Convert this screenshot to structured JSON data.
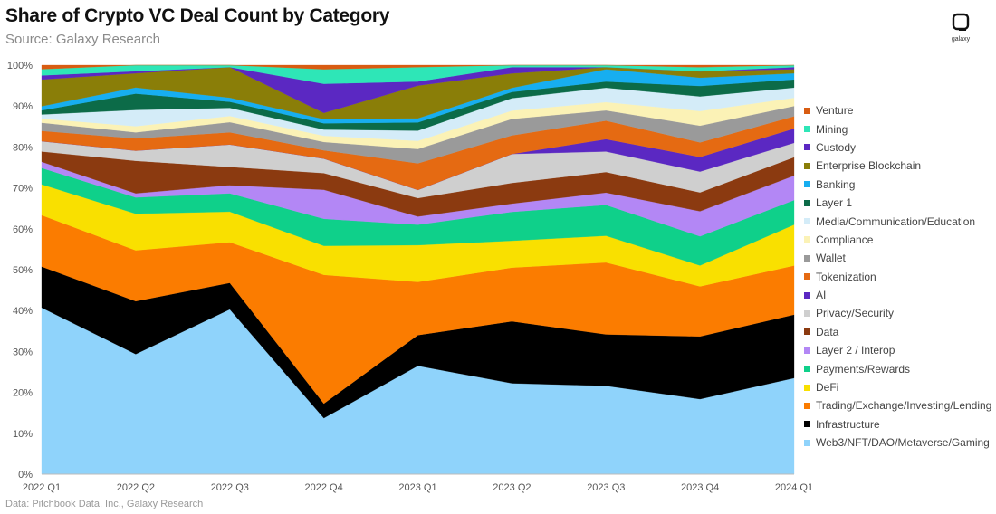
{
  "header": {
    "title": "Share of Crypto VC Deal Count by Category",
    "subtitle": "Source: Galaxy Research"
  },
  "footer": {
    "source": "Data: Pitchbook Data, Inc., Galaxy Research"
  },
  "logo": {
    "text": "galaxy",
    "icon": "galaxy-logo-icon"
  },
  "chart_data": {
    "type": "area",
    "stacked": true,
    "normalized": true,
    "title": "Share of Crypto VC Deal Count by Category",
    "xlabel": "",
    "ylabel": "",
    "ylim": [
      0,
      100
    ],
    "y_ticks": [
      "0%",
      "10%",
      "20%",
      "30%",
      "40%",
      "50%",
      "60%",
      "70%",
      "80%",
      "90%",
      "100%"
    ],
    "categories": [
      "2022 Q1",
      "2022 Q2",
      "2022 Q3",
      "2022 Q4",
      "2023 Q1",
      "2023 Q2",
      "2023 Q3",
      "2023 Q4",
      "2024 Q1"
    ],
    "legend_position": "right",
    "series": [
      {
        "name": "Web3/NFT/DAO/Metaverse/Gaming",
        "color": "#8fd3fb",
        "values": [
          40.5,
          29.5,
          40.5,
          13.5,
          26.5,
          22.0,
          21.5,
          18.0,
          23.5
        ]
      },
      {
        "name": "Infrastructure",
        "color": "#000000",
        "values": [
          10.0,
          13.0,
          6.5,
          3.5,
          7.5,
          15.0,
          12.5,
          15.0,
          15.5
        ]
      },
      {
        "name": "Trading/Exchange/Investing/Lending",
        "color": "#fb7c00",
        "values": [
          12.5,
          12.5,
          10.0,
          31.0,
          13.0,
          13.0,
          17.5,
          12.0,
          12.0
        ]
      },
      {
        "name": "DeFi",
        "color": "#f9e000",
        "values": [
          7.5,
          9.0,
          7.5,
          7.0,
          9.0,
          6.5,
          6.5,
          5.0,
          10.0
        ]
      },
      {
        "name": "Payments/Rewards",
        "color": "#0fd08a",
        "values": [
          4.0,
          4.0,
          4.5,
          6.5,
          5.0,
          7.0,
          7.5,
          7.0,
          6.0
        ]
      },
      {
        "name": "Layer 2 / Interop",
        "color": "#b387f5",
        "values": [
          1.5,
          1.0,
          2.0,
          7.0,
          2.0,
          2.0,
          3.0,
          6.0,
          6.0
        ]
      },
      {
        "name": "Data",
        "color": "#8b3a10",
        "values": [
          2.5,
          8.0,
          4.5,
          4.0,
          4.5,
          5.0,
          5.0,
          4.5,
          4.5
        ]
      },
      {
        "name": "Privacy/Security",
        "color": "#cfcfcf",
        "values": [
          2.5,
          2.5,
          5.5,
          3.5,
          2.0,
          7.0,
          5.0,
          5.0,
          3.5
        ]
      },
      {
        "name": "AI",
        "color": "#5b28c2",
        "values": [
          0,
          0,
          0,
          0,
          0,
          0,
          3.0,
          3.5,
          3.5
        ]
      },
      {
        "name": "Tokenization",
        "color": "#e56a12",
        "values": [
          2.5,
          3.0,
          3.0,
          2.0,
          6.5,
          4.5,
          4.5,
          3.5,
          3.0
        ]
      },
      {
        "name": "Wallet",
        "color": "#9a9a9a",
        "values": [
          2.0,
          1.5,
          2.5,
          2.0,
          3.5,
          4.0,
          2.5,
          4.0,
          2.5
        ]
      },
      {
        "name": "Compliance",
        "color": "#fbf2b6",
        "values": [
          1.0,
          1.5,
          1.5,
          1.5,
          2.0,
          2.0,
          2.0,
          3.5,
          2.0
        ]
      },
      {
        "name": "Media/Communication/Education",
        "color": "#d4ecf8",
        "values": [
          1.0,
          4.0,
          2.0,
          1.5,
          2.5,
          3.0,
          3.5,
          3.5,
          2.5
        ]
      },
      {
        "name": "Layer 1",
        "color": "#0c6b48",
        "values": [
          1.0,
          4.0,
          1.5,
          1.5,
          2.0,
          1.5,
          1.5,
          2.5,
          2.0
        ]
      },
      {
        "name": "Banking",
        "color": "#17aef0",
        "values": [
          1.0,
          1.5,
          1.0,
          1.0,
          1.0,
          1.0,
          3.0,
          2.0,
          1.5
        ]
      },
      {
        "name": "Enterprise Blockchain",
        "color": "#8a7e08",
        "values": [
          6.5,
          3.5,
          7.5,
          1.5,
          8.0,
          3.5,
          0.5,
          1.5,
          1.0
        ]
      },
      {
        "name": "Custody",
        "color": "#5b28c2",
        "values": [
          1.0,
          0.5,
          0,
          7.0,
          1.0,
          1.5,
          0,
          0,
          0.5
        ]
      },
      {
        "name": "Mining",
        "color": "#2ee6b7",
        "values": [
          1.5,
          1.5,
          0.5,
          3.5,
          3.5,
          0.5,
          0.5,
          1.0,
          0.5
        ]
      },
      {
        "name": "Venture",
        "color": "#d85c12",
        "values": [
          1.0,
          0,
          0,
          1.0,
          0.5,
          0,
          0,
          0.5,
          0
        ]
      }
    ]
  }
}
